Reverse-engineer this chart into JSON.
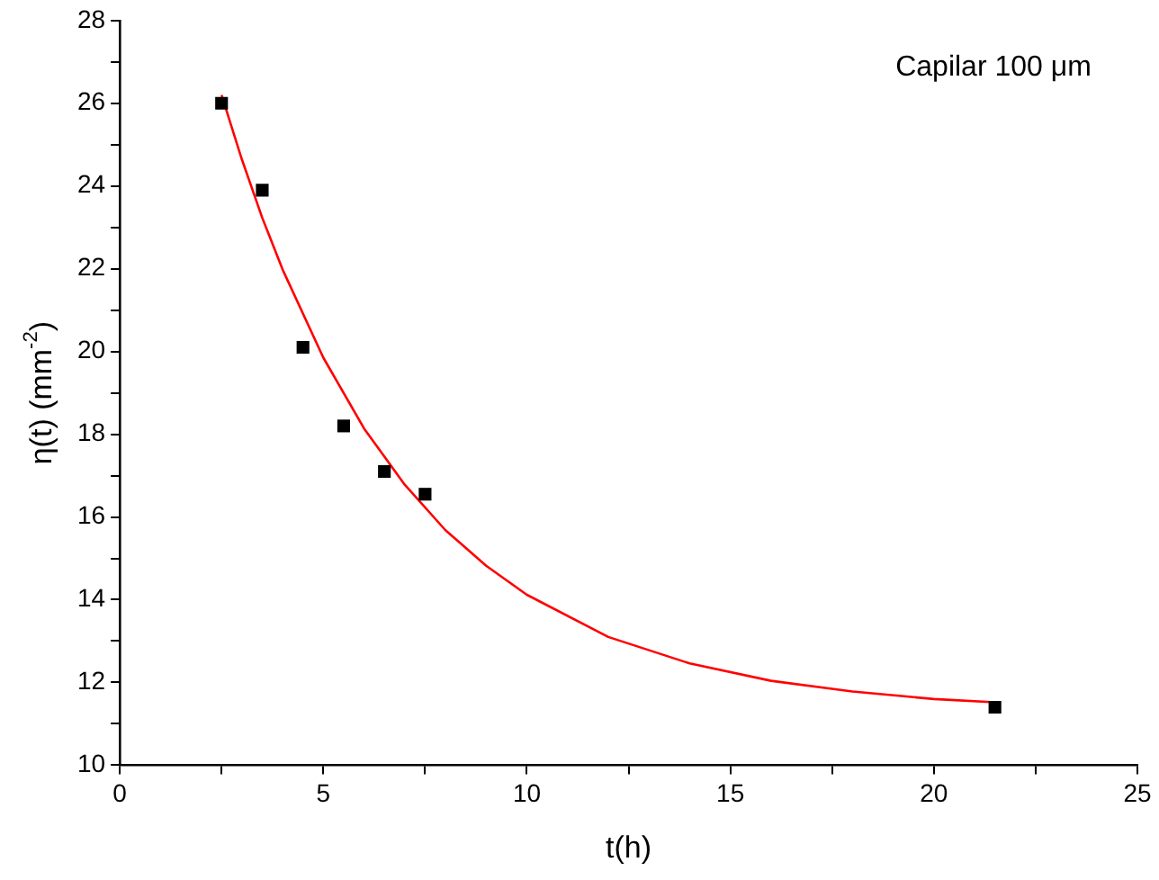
{
  "chart_data": {
    "type": "scatter",
    "xlabel": "t(h)",
    "ylabel": "η(t) (mm$^{-2}$)",
    "annotations": [
      "Capilar 100 μm"
    ],
    "xlim": [
      0,
      25
    ],
    "ylim": [
      10,
      28
    ],
    "xticks": [
      0,
      {
        "value": 2.5,
        "label": null
      },
      5,
      {
        "value": 7.5,
        "label": null
      },
      10,
      {
        "value": 12.5,
        "label": null
      },
      15,
      {
        "value": 17.5,
        "label": null
      },
      20,
      {
        "value": 22.5,
        "label": null
      },
      25
    ],
    "yticks": [
      10,
      {
        "value": 11,
        "label": null
      },
      12,
      {
        "value": 13,
        "label": null
      },
      14,
      {
        "value": 15,
        "label": null
      },
      16,
      {
        "value": 17,
        "label": null
      },
      18,
      {
        "value": 19,
        "label": null
      },
      20,
      {
        "value": 21,
        "label": null
      },
      22,
      {
        "value": 23,
        "label": null
      },
      24,
      {
        "value": 25,
        "label": null
      },
      26,
      {
        "value": 27,
        "label": null
      },
      28
    ],
    "grid": false,
    "legend": false,
    "series": [
      {
        "color": "#000000",
        "marker": "square",
        "x": [
          2.5,
          3.5,
          4.5,
          5.5,
          6.5,
          7.5,
          21.5
        ],
        "values": [
          26.0,
          23.9,
          20.1,
          18.2,
          17.1,
          16.55,
          11.4
        ]
      },
      {
        "type": "line",
        "color": "#ff0000",
        "marker": "none",
        "line_style": "solid",
        "x": [
          2.5,
          3,
          3.5,
          4,
          5,
          6,
          7,
          8,
          9,
          10,
          12,
          14,
          16,
          18,
          20,
          21.5
        ],
        "values": [
          26.2,
          24.64,
          23.23,
          21.98,
          19.85,
          18.14,
          16.78,
          15.68,
          14.82,
          14.12,
          13.1,
          12.46,
          12.04,
          11.78,
          11.6,
          11.52
        ]
      }
    ]
  }
}
